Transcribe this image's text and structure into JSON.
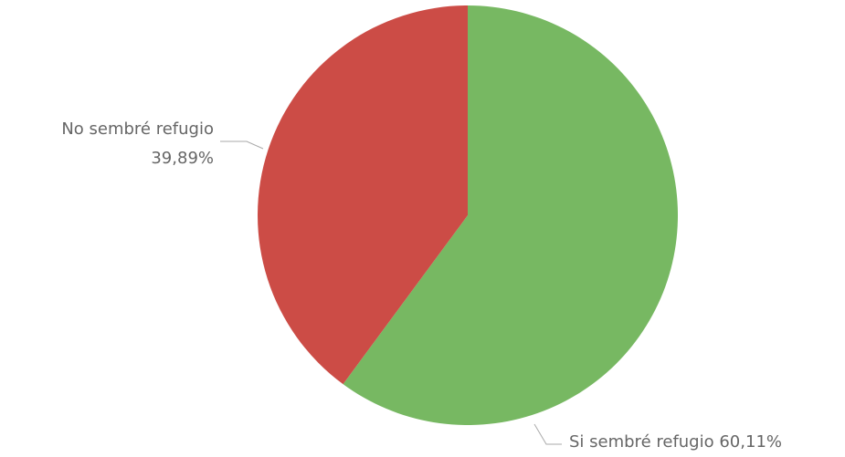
{
  "chart_data": {
    "type": "pie",
    "categories": [
      "Si sembré refugio",
      "No sembré refugio"
    ],
    "values": [
      60.11,
      39.89
    ],
    "value_labels": [
      "60,11%",
      "39,89%"
    ],
    "colors": [
      "#77b862",
      "#cc4c46"
    ]
  }
}
